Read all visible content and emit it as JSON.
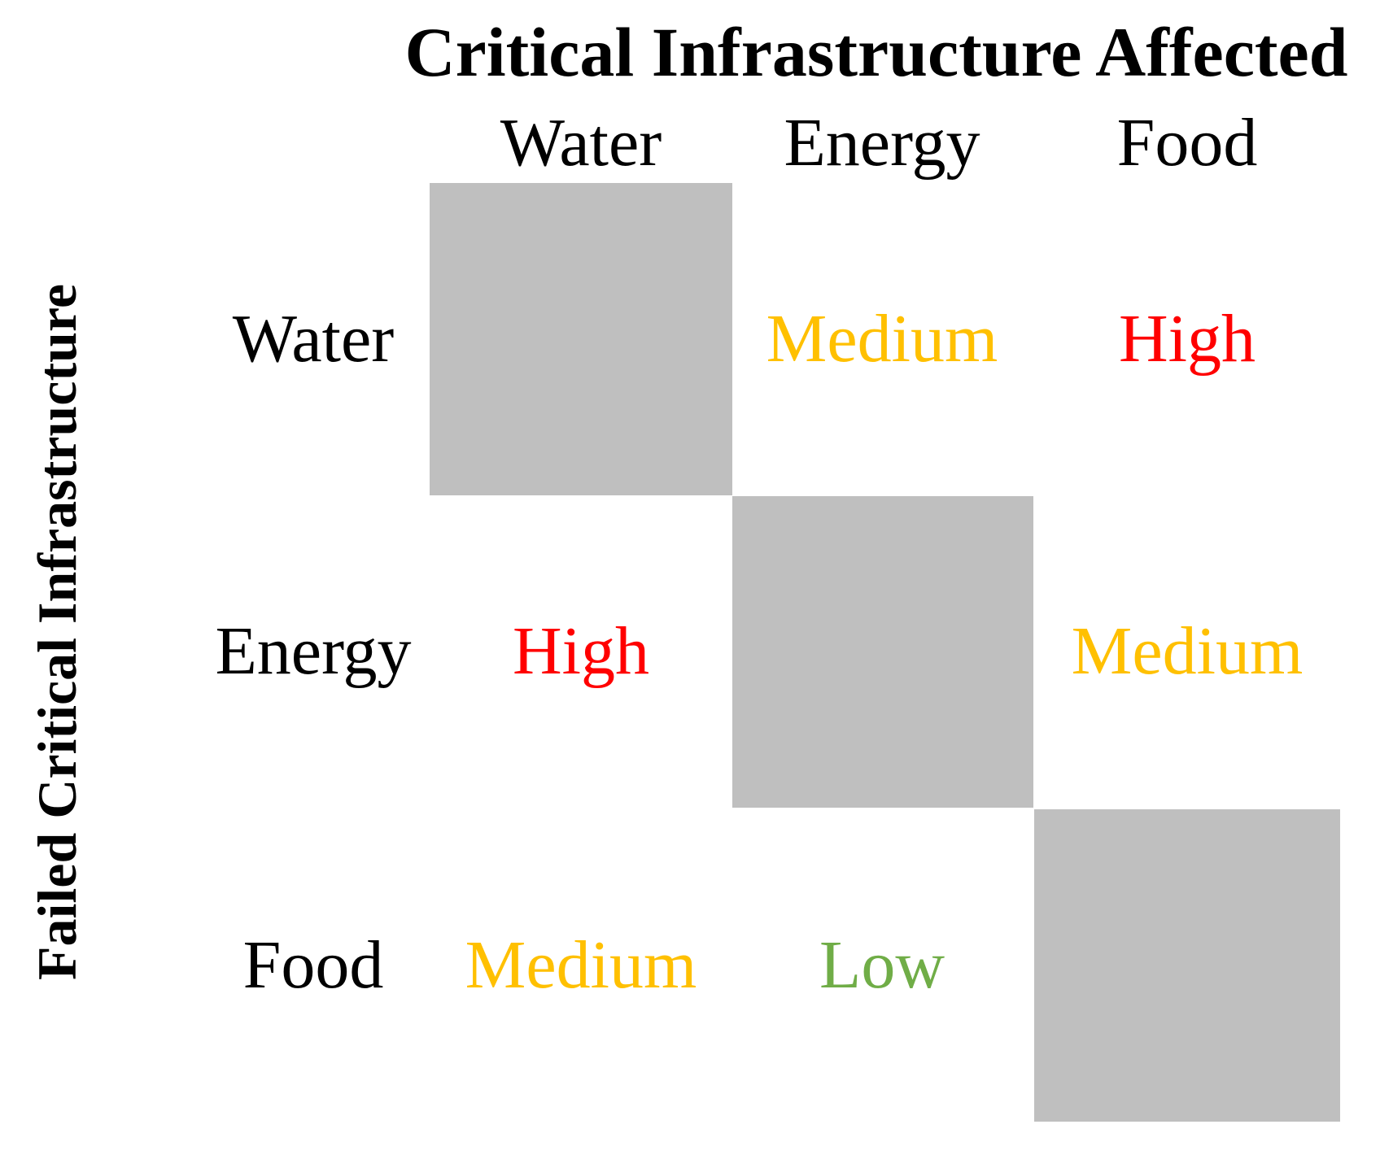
{
  "chart_data": {
    "type": "heatmap",
    "title": "Critical Infrastructure Affected",
    "xlabel": "Critical Infrastructure Affected",
    "ylabel": "Failed Critical Infrastructure",
    "x_categories": [
      "Water",
      "Energy",
      "Food"
    ],
    "y_categories": [
      "Water",
      "Energy",
      "Food"
    ],
    "cells": [
      [
        null,
        "Medium",
        "High"
      ],
      [
        "High",
        null,
        "Medium"
      ],
      [
        "Medium",
        "Low",
        null
      ]
    ],
    "value_colors": {
      "High": "#FF0000",
      "Medium": "#FFC000",
      "Low": "#70AD47"
    },
    "diagonal_fill": "#BFBFBF",
    "text_color": "#000000",
    "background": "#FFFFFF",
    "layout_hints": {
      "grid": "off",
      "diagonal": "self-impact cells are filled gray with no value",
      "legend": "none"
    }
  }
}
